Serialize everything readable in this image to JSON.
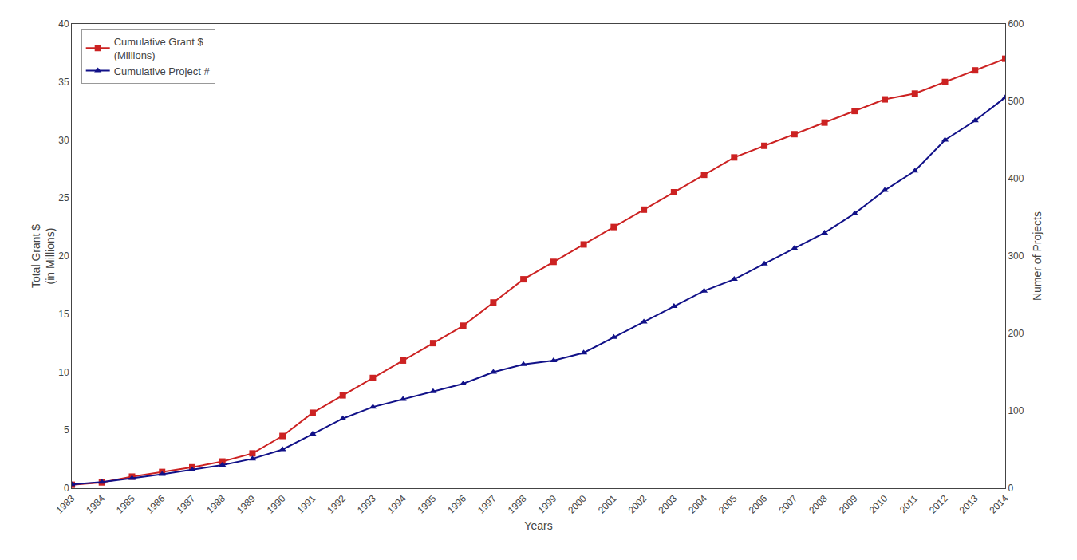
{
  "chart_data": {
    "type": "line",
    "x": [
      1983,
      1984,
      1985,
      1986,
      1987,
      1988,
      1989,
      1990,
      1991,
      1992,
      1993,
      1994,
      1995,
      1996,
      1997,
      1998,
      1999,
      2000,
      2001,
      2002,
      2003,
      2004,
      2005,
      2006,
      2007,
      2008,
      2009,
      2010,
      2011,
      2012,
      2013,
      2014
    ],
    "xlabel": "Years",
    "ylabel": "Total Grant $\n(in Millions)",
    "y2label": "Numer of Projects",
    "xlim": [
      1983,
      2014
    ],
    "xticks": [
      1983,
      1984,
      1985,
      1986,
      1987,
      1988,
      1989,
      1990,
      1991,
      1992,
      1993,
      1994,
      1995,
      1996,
      1997,
      1998,
      1999,
      2000,
      2001,
      2002,
      2003,
      2004,
      2005,
      2006,
      2007,
      2008,
      2009,
      2010,
      2011,
      2012,
      2013,
      2014
    ],
    "ylim": [
      0,
      40
    ],
    "yticks": [
      0,
      5,
      10,
      15,
      20,
      25,
      30,
      35,
      40
    ],
    "y2lim": [
      0,
      600
    ],
    "y2ticks": [
      0,
      100,
      200,
      300,
      400,
      500,
      600
    ],
    "grid": false,
    "legend": "upper left",
    "series": [
      {
        "name": "Cumulative Grant $\n(Millions)",
        "color": "#cc2222",
        "marker": "square",
        "values": [
          0.3,
          0.5,
          1.0,
          1.4,
          1.8,
          2.3,
          3.0,
          4.5,
          6.5,
          8.0,
          9.5,
          11.0,
          12.5,
          14.0,
          16.0,
          18.0,
          19.5,
          21.0,
          22.5,
          24.0,
          25.5,
          27.0,
          28.5,
          29.5,
          30.5,
          31.5,
          32.5,
          33.5,
          34.0,
          35.0,
          36.0,
          37.0
        ]
      },
      {
        "name": "Cumulative Project #",
        "color": "#111188",
        "marker": "triangle-up",
        "axis": "y2",
        "values": [
          5,
          8,
          13,
          18,
          24,
          30,
          38,
          50,
          70,
          90,
          105,
          115,
          125,
          135,
          150,
          160,
          165,
          175,
          195,
          215,
          235,
          255,
          270,
          290,
          310,
          330,
          355,
          385,
          410,
          450,
          475,
          505
        ]
      }
    ]
  }
}
